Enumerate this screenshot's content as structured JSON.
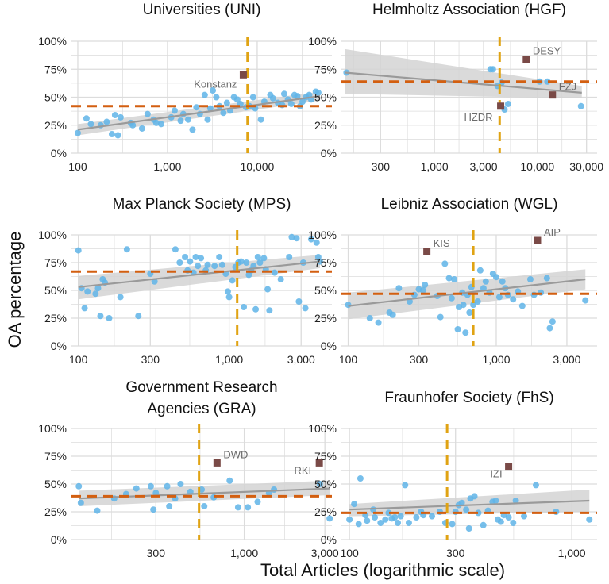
{
  "figure": {
    "ylabel": "OA percentage",
    "xlabel": "Total Articles (logarithmic scale)"
  },
  "colors": {
    "point": "#5fb4e8",
    "highlight": "#7a4a47",
    "hline": "#d35f10",
    "vline": "#e0a313",
    "fit": "#9a9a9a",
    "band": "#d3d3d3",
    "grid": "#dcdcdc"
  },
  "chart_data": [
    {
      "type": "scatter",
      "title": "Universities (UNI)",
      "xscale": "log",
      "xlim": [
        85,
        68000
      ],
      "ylim": [
        0,
        1
      ],
      "xticks": [
        100,
        1000,
        10000
      ],
      "xtick_labels": [
        "100",
        "1,000",
        "10,000"
      ],
      "yticks": [
        0,
        0.25,
        0.5,
        0.75,
        1
      ],
      "ytick_labels": [
        "0%",
        "25%",
        "50%",
        "75%",
        "100%"
      ],
      "hline": 0.42,
      "vline": 7800,
      "fit": {
        "x": [
          100,
          50000
        ],
        "y": [
          0.21,
          0.51
        ],
        "band_low": [
          0.16,
          0.47
        ],
        "band_high": [
          0.26,
          0.55
        ]
      },
      "highlighted": [
        {
          "label": "Konstanz",
          "x": 7000,
          "y": 0.7
        }
      ],
      "points": [
        [
          100,
          0.18
        ],
        [
          125,
          0.31
        ],
        [
          140,
          0.26
        ],
        [
          180,
          0.25
        ],
        [
          210,
          0.28
        ],
        [
          240,
          0.17
        ],
        [
          260,
          0.34
        ],
        [
          300,
          0.32
        ],
        [
          280,
          0.16
        ],
        [
          390,
          0.27
        ],
        [
          410,
          0.25
        ],
        [
          520,
          0.22
        ],
        [
          600,
          0.35
        ],
        [
          700,
          0.3
        ],
        [
          750,
          0.27
        ],
        [
          850,
          0.26
        ],
        [
          1100,
          0.32
        ],
        [
          1200,
          0.38
        ],
        [
          1400,
          0.29
        ],
        [
          1500,
          0.35
        ],
        [
          1700,
          0.3
        ],
        [
          1900,
          0.21
        ],
        [
          2100,
          0.41
        ],
        [
          2300,
          0.35
        ],
        [
          2600,
          0.52
        ],
        [
          2800,
          0.3
        ],
        [
          3000,
          0.4
        ],
        [
          3200,
          0.56
        ],
        [
          3500,
          0.5
        ],
        [
          3800,
          0.42
        ],
        [
          4200,
          0.36
        ],
        [
          4600,
          0.45
        ],
        [
          5000,
          0.38
        ],
        [
          5500,
          0.5
        ],
        [
          6000,
          0.48
        ],
        [
          6500,
          0.44
        ],
        [
          7500,
          0.41
        ],
        [
          8200,
          0.42
        ],
        [
          9000,
          0.5
        ],
        [
          9500,
          0.4
        ],
        [
          11000,
          0.3
        ],
        [
          12000,
          0.46
        ],
        [
          14000,
          0.52
        ],
        [
          15000,
          0.49
        ],
        [
          17000,
          0.45
        ],
        [
          19000,
          0.43
        ],
        [
          20000,
          0.53
        ],
        [
          22000,
          0.48
        ],
        [
          24000,
          0.44
        ],
        [
          26000,
          0.52
        ],
        [
          28000,
          0.51
        ],
        [
          30000,
          0.42
        ],
        [
          32000,
          0.46
        ],
        [
          35000,
          0.5
        ],
        [
          38000,
          0.52
        ],
        [
          40000,
          0.48
        ],
        [
          45000,
          0.55
        ],
        [
          48000,
          0.54
        ]
      ]
    },
    {
      "type": "scatter",
      "title": "Helmholtz Association (HGF)",
      "xscale": "log",
      "xlim": [
        125,
        38000
      ],
      "ylim": [
        0,
        1
      ],
      "xticks": [
        300,
        1000,
        3000,
        10000,
        30000
      ],
      "xtick_labels": [
        "300",
        "1,000",
        "3,000",
        "10,000",
        "30,000"
      ],
      "yticks": [
        0,
        0.25,
        0.5,
        0.75,
        1
      ],
      "ytick_labels": [
        "0%",
        "25%",
        "50%",
        "75%",
        "100%"
      ],
      "hline": 0.64,
      "vline": 4300,
      "fit": {
        "x": [
          135,
          27000
        ],
        "y": [
          0.72,
          0.54
        ],
        "band_low": [
          0.53,
          0.49
        ],
        "band_high": [
          0.93,
          0.6
        ]
      },
      "highlighted": [
        {
          "label": "DESY",
          "x": 7800,
          "y": 0.84
        },
        {
          "label": "FZJ",
          "x": 14000,
          "y": 0.52
        },
        {
          "label": "HZDR",
          "x": 4400,
          "y": 0.42
        }
      ],
      "points": [
        [
          140,
          0.72
        ],
        [
          3500,
          0.75
        ],
        [
          3700,
          0.75
        ],
        [
          4100,
          0.6
        ],
        [
          4500,
          0.63
        ],
        [
          4800,
          0.39
        ],
        [
          5200,
          0.44
        ],
        [
          10500,
          0.64
        ],
        [
          12500,
          0.64
        ],
        [
          26500,
          0.42
        ]
      ]
    },
    {
      "type": "scatter",
      "title": "Max Planck Society (MPS)",
      "xscale": "log",
      "xlim": [
        90,
        4800
      ],
      "ylim": [
        0,
        1
      ],
      "xticks": [
        100,
        300,
        1000,
        3000
      ],
      "xtick_labels": [
        "100",
        "300",
        "1,000",
        "3,000"
      ],
      "yticks": [
        0,
        0.25,
        0.5,
        0.75,
        1
      ],
      "ytick_labels": [
        "0%",
        "25%",
        "50%",
        "75%",
        "100%"
      ],
      "hline": 0.67,
      "vline": 1130,
      "fit": {
        "x": [
          100,
          4000
        ],
        "y": [
          0.53,
          0.76
        ],
        "band_low": [
          0.42,
          0.7
        ],
        "band_high": [
          0.63,
          0.82
        ]
      },
      "highlighted": [],
      "points": [
        [
          100,
          0.86
        ],
        [
          105,
          0.52
        ],
        [
          110,
          0.34
        ],
        [
          115,
          0.49
        ],
        [
          130,
          0.47
        ],
        [
          135,
          0.52
        ],
        [
          140,
          0.27
        ],
        [
          145,
          0.6
        ],
        [
          150,
          0.57
        ],
        [
          160,
          0.25
        ],
        [
          190,
          0.44
        ],
        [
          210,
          0.87
        ],
        [
          250,
          0.27
        ],
        [
          300,
          0.65
        ],
        [
          320,
          0.58
        ],
        [
          440,
          0.87
        ],
        [
          470,
          0.75
        ],
        [
          510,
          0.8
        ],
        [
          530,
          0.68
        ],
        [
          550,
          0.76
        ],
        [
          580,
          0.66
        ],
        [
          600,
          0.8
        ],
        [
          620,
          0.72
        ],
        [
          650,
          0.79
        ],
        [
          700,
          0.68
        ],
        [
          720,
          0.73
        ],
        [
          800,
          0.72
        ],
        [
          860,
          0.8
        ],
        [
          900,
          0.73
        ],
        [
          950,
          0.65
        ],
        [
          980,
          0.49
        ],
        [
          1000,
          0.44
        ],
        [
          1050,
          0.59
        ],
        [
          1100,
          0.71
        ],
        [
          1150,
          0.75
        ],
        [
          1200,
          0.76
        ],
        [
          1250,
          0.35
        ],
        [
          1300,
          0.75
        ],
        [
          1350,
          0.64
        ],
        [
          1400,
          0.68
        ],
        [
          1450,
          0.72
        ],
        [
          1500,
          0.33
        ],
        [
          1550,
          0.8
        ],
        [
          1600,
          0.75
        ],
        [
          1700,
          0.79
        ],
        [
          1750,
          0.69
        ],
        [
          1800,
          0.51
        ],
        [
          1850,
          0.32
        ],
        [
          2000,
          0.66
        ],
        [
          2200,
          0.6
        ],
        [
          2500,
          0.8
        ],
        [
          2600,
          0.98
        ],
        [
          2800,
          0.97
        ],
        [
          2900,
          0.4
        ],
        [
          3100,
          0.75
        ],
        [
          3200,
          0.34
        ],
        [
          3500,
          0.96
        ],
        [
          3800,
          0.93
        ],
        [
          3900,
          0.8
        ],
        [
          4000,
          0.76
        ]
      ]
    },
    {
      "type": "scatter",
      "title": "Leibniz Association (WGL)",
      "xscale": "log",
      "xlim": [
        90,
        4800
      ],
      "ylim": [
        0,
        1
      ],
      "xticks": [
        100,
        300,
        1000,
        3000
      ],
      "xtick_labels": [
        "100",
        "300",
        "1,000",
        "3,000"
      ],
      "yticks": [
        0,
        0.25,
        0.5,
        0.75,
        1
      ],
      "ytick_labels": [
        "0%",
        "25%",
        "50%",
        "75%",
        "100%"
      ],
      "hline": 0.47,
      "vline": 700,
      "fit": {
        "x": [
          100,
          4000
        ],
        "y": [
          0.36,
          0.6
        ],
        "band_low": [
          0.24,
          0.51
        ],
        "band_high": [
          0.48,
          0.69
        ]
      },
      "highlighted": [
        {
          "label": "KIS",
          "x": 340,
          "y": 0.85
        },
        {
          "label": "AIP",
          "x": 1900,
          "y": 0.95
        }
      ],
      "points": [
        [
          100,
          0.37
        ],
        [
          140,
          0.25
        ],
        [
          160,
          0.21
        ],
        [
          190,
          0.3
        ],
        [
          200,
          0.28
        ],
        [
          220,
          0.52
        ],
        [
          260,
          0.4
        ],
        [
          280,
          0.46
        ],
        [
          300,
          0.51
        ],
        [
          320,
          0.5
        ],
        [
          330,
          0.55
        ],
        [
          400,
          0.45
        ],
        [
          420,
          0.26
        ],
        [
          450,
          0.74
        ],
        [
          480,
          0.61
        ],
        [
          500,
          0.43
        ],
        [
          520,
          0.6
        ],
        [
          550,
          0.15
        ],
        [
          560,
          0.35
        ],
        [
          590,
          0.48
        ],
        [
          600,
          0.37
        ],
        [
          620,
          0.12
        ],
        [
          640,
          0.46
        ],
        [
          660,
          0.3
        ],
        [
          680,
          0.53
        ],
        [
          700,
          0.37
        ],
        [
          750,
          0.4
        ],
        [
          780,
          0.68
        ],
        [
          820,
          0.52
        ],
        [
          850,
          0.58
        ],
        [
          900,
          0.48
        ],
        [
          950,
          0.65
        ],
        [
          1000,
          0.62
        ],
        [
          1050,
          0.44
        ],
        [
          1100,
          0.58
        ],
        [
          1150,
          0.52
        ],
        [
          1200,
          0.46
        ],
        [
          1300,
          0.42
        ],
        [
          1400,
          0.49
        ],
        [
          1500,
          0.36
        ],
        [
          1700,
          0.6
        ],
        [
          1800,
          0.46
        ],
        [
          2000,
          0.48
        ],
        [
          2200,
          0.61
        ],
        [
          2300,
          0.16
        ],
        [
          2400,
          0.22
        ],
        [
          4000,
          0.41
        ]
      ]
    },
    {
      "type": "scatter",
      "title": "Government Research\nAgencies (GRA)",
      "xscale": "log",
      "xlim": [
        95,
        3300
      ],
      "ylim": [
        0,
        1
      ],
      "xticks": [
        300,
        1000,
        3000
      ],
      "xtick_labels": [
        "300",
        "1,000",
        "3,000"
      ],
      "yticks": [
        0,
        0.25,
        0.5,
        0.75,
        1
      ],
      "ytick_labels": [
        "0%",
        "25%",
        "50%",
        "75%",
        "100%"
      ],
      "hline": 0.39,
      "vline": 540,
      "fit": {
        "x": [
          105,
          3200
        ],
        "y": [
          0.37,
          0.46
        ],
        "band_low": [
          0.3,
          0.4
        ],
        "band_high": [
          0.44,
          0.53
        ]
      },
      "highlighted": [
        {
          "label": "DWD",
          "x": 690,
          "y": 0.69
        },
        {
          "label": "RKI",
          "x": 2780,
          "y": 0.69
        }
      ],
      "points": [
        [
          105,
          0.48
        ],
        [
          108,
          0.33
        ],
        [
          135,
          0.26
        ],
        [
          170,
          0.37
        ],
        [
          200,
          0.41
        ],
        [
          230,
          0.46
        ],
        [
          280,
          0.48
        ],
        [
          290,
          0.27
        ],
        [
          300,
          0.42
        ],
        [
          350,
          0.48
        ],
        [
          360,
          0.3
        ],
        [
          390,
          0.37
        ],
        [
          420,
          0.5
        ],
        [
          480,
          0.43
        ],
        [
          560,
          0.45
        ],
        [
          580,
          0.3
        ],
        [
          660,
          0.38
        ],
        [
          820,
          0.53
        ],
        [
          920,
          0.29
        ],
        [
          1050,
          0.29
        ],
        [
          1200,
          0.34
        ],
        [
          1400,
          0.42
        ],
        [
          1500,
          0.45
        ],
        [
          2800,
          0.5
        ],
        [
          3200,
          0.19
        ]
      ]
    },
    {
      "type": "scatter",
      "title": "Fraunhofer Society (FhS)",
      "xscale": "log",
      "xlim": [
        92,
        1300
      ],
      "ylim": [
        0,
        1
      ],
      "xticks": [
        100,
        300,
        1000
      ],
      "xtick_labels": [
        "100",
        "300",
        "1,000"
      ],
      "yticks": [
        0,
        0.25,
        0.5,
        0.75,
        1
      ],
      "ytick_labels": [
        "0%",
        "25%",
        "50%",
        "75%",
        "100%"
      ],
      "hline": 0.24,
      "vline": 275,
      "fit": {
        "x": [
          100,
          1200
        ],
        "y": [
          0.27,
          0.35
        ],
        "band_low": [
          0.21,
          0.25
        ],
        "band_high": [
          0.32,
          0.45
        ]
      },
      "highlighted": [
        {
          "label": "IZI",
          "x": 520,
          "y": 0.66
        }
      ],
      "points": [
        [
          100,
          0.18
        ],
        [
          105,
          0.32
        ],
        [
          110,
          0.14
        ],
        [
          112,
          0.55
        ],
        [
          118,
          0.22
        ],
        [
          120,
          0.17
        ],
        [
          128,
          0.27
        ],
        [
          130,
          0.2
        ],
        [
          138,
          0.15
        ],
        [
          145,
          0.18
        ],
        [
          150,
          0.24
        ],
        [
          155,
          0.19
        ],
        [
          160,
          0.2
        ],
        [
          165,
          0.15
        ],
        [
          170,
          0.21
        ],
        [
          178,
          0.49
        ],
        [
          185,
          0.15
        ],
        [
          200,
          0.2
        ],
        [
          210,
          0.25
        ],
        [
          215,
          0.22
        ],
        [
          235,
          0.21
        ],
        [
          255,
          0.25
        ],
        [
          270,
          0.15
        ],
        [
          290,
          0.14
        ],
        [
          300,
          0.25
        ],
        [
          310,
          0.31
        ],
        [
          320,
          0.33
        ],
        [
          335,
          0.27
        ],
        [
          345,
          0.1
        ],
        [
          350,
          0.37
        ],
        [
          365,
          0.39
        ],
        [
          380,
          0.24
        ],
        [
          400,
          0.13
        ],
        [
          420,
          0.26
        ],
        [
          440,
          0.34
        ],
        [
          455,
          0.35
        ],
        [
          465,
          0.18
        ],
        [
          480,
          0.16
        ],
        [
          495,
          0.22
        ],
        [
          520,
          0.2
        ],
        [
          545,
          0.15
        ],
        [
          560,
          0.35
        ],
        [
          610,
          0.21
        ],
        [
          690,
          0.49
        ],
        [
          850,
          0.25
        ],
        [
          1200,
          0.18
        ]
      ]
    }
  ]
}
